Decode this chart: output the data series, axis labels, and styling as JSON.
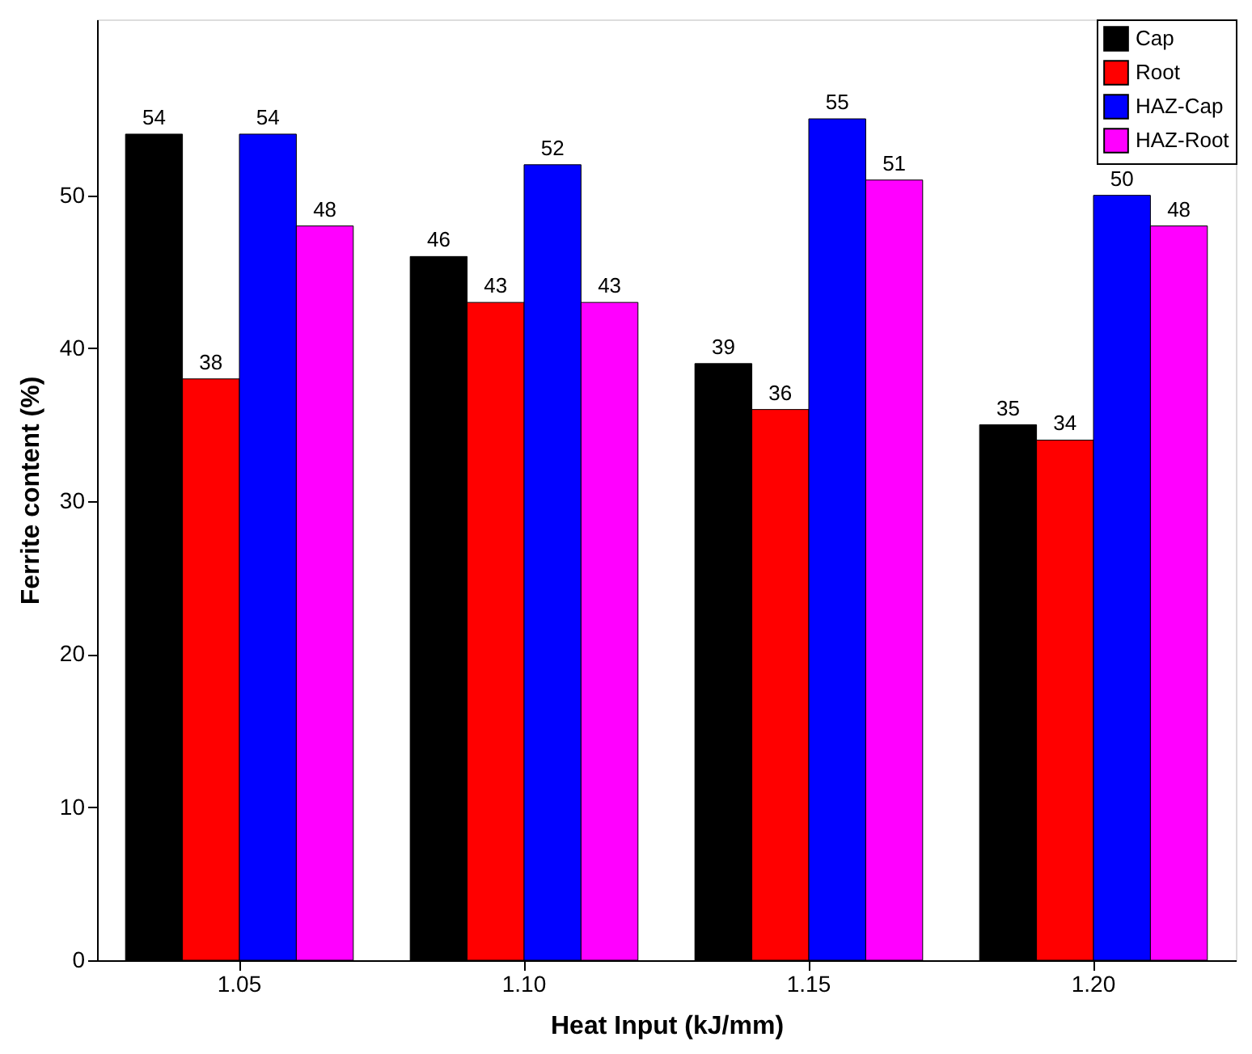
{
  "chart_data": {
    "type": "bar",
    "xlabel": "Heat Input (kJ/mm)",
    "ylabel": "Ferrite content (%)",
    "categories": [
      "1.05",
      "1.10",
      "1.15",
      "1.20"
    ],
    "series": [
      {
        "name": "Cap",
        "color": "#000000",
        "values": [
          54,
          46,
          39,
          35
        ]
      },
      {
        "name": "Root",
        "color": "#ff0000",
        "values": [
          38,
          43,
          36,
          34
        ]
      },
      {
        "name": "HAZ-Cap",
        "color": "#0000ff",
        "values": [
          54,
          52,
          55,
          50
        ]
      },
      {
        "name": "HAZ-Root",
        "color": "#ff00ff",
        "values": [
          48,
          43,
          51,
          48
        ]
      }
    ],
    "ylim": [
      0,
      61.5
    ],
    "yticks": [
      0,
      10,
      20,
      30,
      40,
      50
    ],
    "grid": false,
    "legend": "top right",
    "data_labels": true
  }
}
